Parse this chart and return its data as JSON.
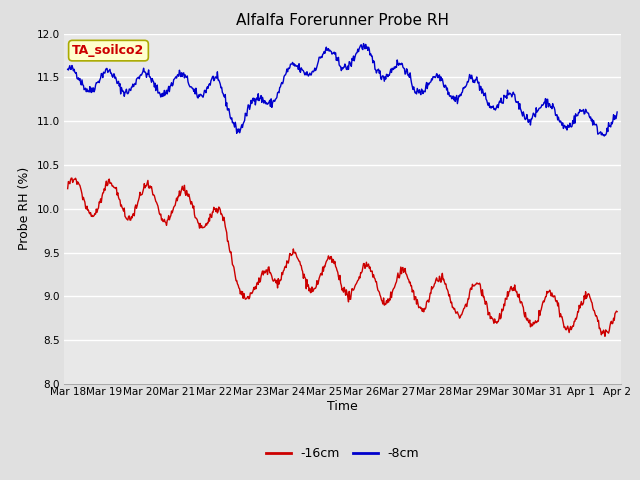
{
  "title": "Alfalfa Forerunner Probe RH",
  "ylabel": "Probe RH (%)",
  "xlabel": "Time",
  "annotation": "TA_soilco2",
  "ylim": [
    8.0,
    12.0
  ],
  "yticks": [
    8.0,
    8.5,
    9.0,
    9.5,
    10.0,
    10.5,
    11.0,
    11.5,
    12.0
  ],
  "xtick_labels": [
    "Mar 18",
    "Mar 19",
    "Mar 20",
    "Mar 21",
    "Mar 22",
    "Mar 23",
    "Mar 24",
    "Mar 25",
    "Mar 26",
    "Mar 27",
    "Mar 28",
    "Mar 29",
    "Mar 30",
    "Mar 31",
    "Apr 1",
    "Apr 2"
  ],
  "line_red_label": "-16cm",
  "line_blue_label": "-8cm",
  "line_red_color": "#cc0000",
  "line_blue_color": "#0000cc",
  "fig_bg_color": "#e0e0e0",
  "plot_bg_color": "#e8e8e8",
  "grid_color": "#ffffff",
  "annotation_bg": "#ffffcc",
  "annotation_border": "#aaaa00",
  "annotation_text_color": "#cc0000",
  "title_fontsize": 11,
  "label_fontsize": 9,
  "tick_fontsize": 7.5,
  "legend_fontsize": 9,
  "line_width": 1.0
}
